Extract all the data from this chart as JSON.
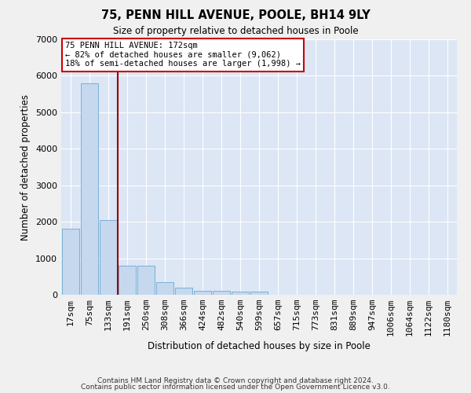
{
  "title": "75, PENN HILL AVENUE, POOLE, BH14 9LY",
  "subtitle": "Size of property relative to detached houses in Poole",
  "xlabel": "Distribution of detached houses by size in Poole",
  "ylabel": "Number of detached properties",
  "bar_color": "#c5d8ee",
  "bar_edge_color": "#6aaad4",
  "background_color": "#dce6f5",
  "grid_color": "#ffffff",
  "categories": [
    "17sqm",
    "75sqm",
    "133sqm",
    "191sqm",
    "250sqm",
    "308sqm",
    "366sqm",
    "424sqm",
    "482sqm",
    "540sqm",
    "599sqm",
    "657sqm",
    "715sqm",
    "773sqm",
    "831sqm",
    "889sqm",
    "947sqm",
    "1006sqm",
    "1064sqm",
    "1122sqm",
    "1180sqm"
  ],
  "values": [
    1800,
    5800,
    2050,
    800,
    790,
    340,
    190,
    115,
    100,
    90,
    80,
    0,
    0,
    0,
    0,
    0,
    0,
    0,
    0,
    0,
    0
  ],
  "ylim": [
    0,
    7000
  ],
  "yticks": [
    0,
    1000,
    2000,
    3000,
    4000,
    5000,
    6000,
    7000
  ],
  "annotation_text": "75 PENN HILL AVENUE: 172sqm\n← 82% of detached houses are smaller (9,062)\n18% of semi-detached houses are larger (1,998) →",
  "vline_x": 2.5,
  "vline_color": "#990000",
  "footer_line1": "Contains HM Land Registry data © Crown copyright and database right 2024.",
  "footer_line2": "Contains public sector information licensed under the Open Government Licence v3.0."
}
